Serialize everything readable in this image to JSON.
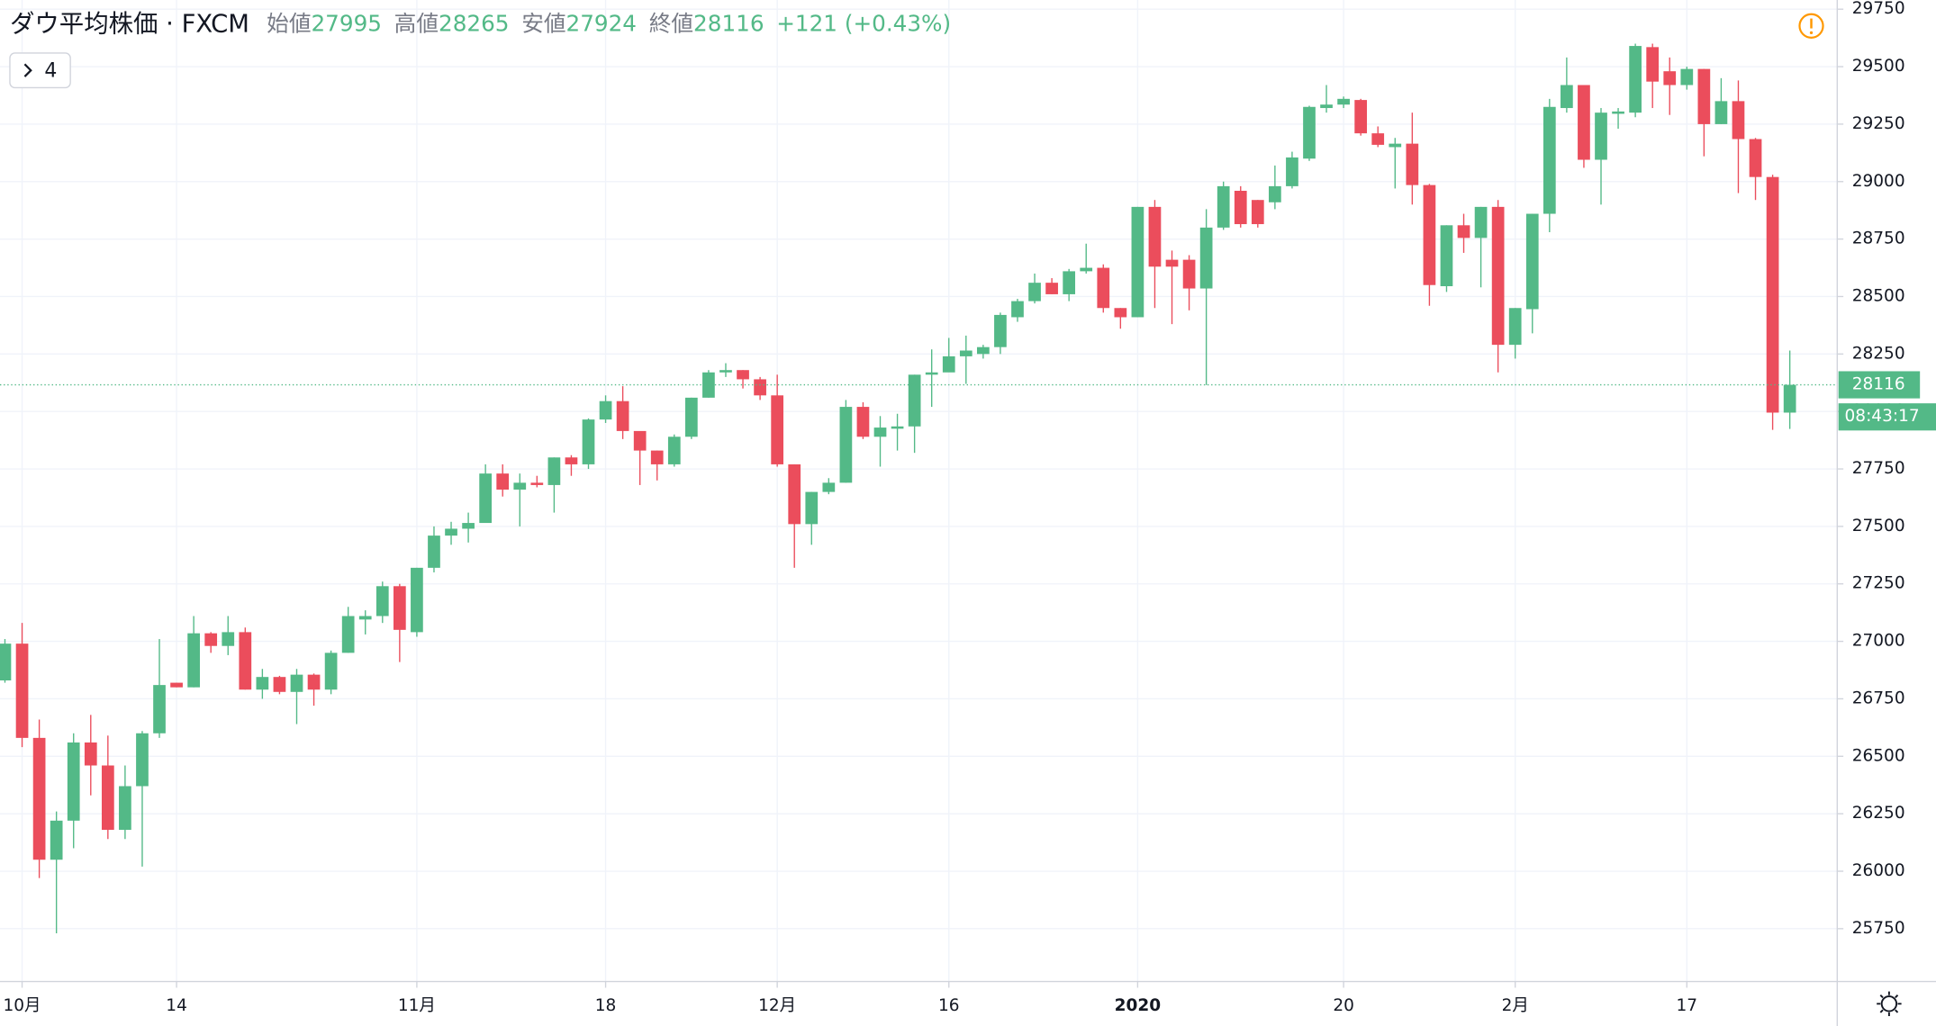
{
  "chart_data": {
    "type": "candlestick",
    "title": "ダウ平均株価 · FXCM",
    "ohlc_labels": [
      "始値",
      "高値",
      "安値",
      "終値"
    ],
    "change_label": "+121 (+0.43%)",
    "countdown": "08:43:17",
    "indicator_count": "4",
    "up_color": "#53b987",
    "down_color": "#eb4d5c",
    "ylim": [
      25520,
      29790
    ],
    "yticks": [
      25750,
      26000,
      26250,
      26500,
      26750,
      27000,
      27250,
      27500,
      27750,
      28000,
      28250,
      28500,
      28750,
      29000,
      29250,
      29500,
      29750
    ],
    "grid": true,
    "xlabels": [
      {
        "index": 1,
        "label": "10月"
      },
      {
        "index": 10,
        "label": "14"
      },
      {
        "index": 24,
        "label": "11月"
      },
      {
        "index": 35,
        "label": "18"
      },
      {
        "index": 45,
        "label": "12月"
      },
      {
        "index": 55,
        "label": "16"
      },
      {
        "index": 66,
        "label": "2020"
      },
      {
        "index": 78,
        "label": "20"
      },
      {
        "index": 88,
        "label": "2月"
      },
      {
        "index": 98,
        "label": "17"
      }
    ],
    "open": [
      26830,
      26990,
      26580,
      26050,
      26220,
      26560,
      26460,
      26180,
      26370,
      26600,
      26820,
      26800,
      27035,
      26980,
      27040,
      26790,
      26845,
      26780,
      26855,
      26790,
      26950,
      27095,
      27110,
      27240,
      27040,
      27320,
      27460,
      27490,
      27515,
      27730,
      27660,
      27690,
      27680,
      27800,
      27770,
      27965,
      28045,
      27915,
      27830,
      27770,
      27890,
      28060,
      28170,
      28180,
      28140,
      28070,
      27770,
      27510,
      27650,
      27690,
      28020,
      27890,
      27925,
      27935,
      28160,
      28170,
      28240,
      28250,
      28280,
      28410,
      28480,
      28560,
      28510,
      28610,
      28625,
      28450,
      28410,
      28890,
      28660,
      28660,
      28535,
      28800,
      28960,
      28920,
      28910,
      28980,
      29100,
      29320,
      29335,
      29355,
      29210,
      29150,
      29165,
      28985,
      28545,
      28810,
      28755,
      28890,
      28290,
      28445,
      28860,
      29320,
      29420,
      29095,
      29295,
      29300,
      29585,
      29480,
      29420,
      29490,
      29250,
      29350,
      29185,
      29020,
      27995
    ],
    "high": [
      27010,
      27080,
      26660,
      26260,
      26600,
      26680,
      26590,
      26460,
      26610,
      27010,
      26820,
      27110,
      27040,
      27110,
      27060,
      26880,
      26850,
      26880,
      26860,
      26960,
      27150,
      27135,
      27260,
      27250,
      27320,
      27500,
      27520,
      27560,
      27770,
      27770,
      27730,
      27720,
      27800,
      27810,
      27970,
      28070,
      28110,
      27900,
      27830,
      27900,
      28060,
      28180,
      28210,
      28180,
      28150,
      28160,
      27770,
      27650,
      27710,
      28050,
      28040,
      27980,
      27990,
      28160,
      28270,
      28320,
      28330,
      28290,
      28430,
      28490,
      28600,
      28580,
      28620,
      28730,
      28640,
      28450,
      28890,
      28920,
      28700,
      28680,
      28880,
      29000,
      28980,
      28920,
      29070,
      29130,
      29330,
      29420,
      29370,
      29360,
      29240,
      29190,
      29300,
      28990,
      28810,
      28860,
      28890,
      28920,
      28450,
      28860,
      29360,
      29540,
      29420,
      29320,
      29320,
      29600,
      29600,
      29540,
      29500,
      29490,
      29450,
      29440,
      29190,
      29030,
      28265
    ],
    "low": [
      26820,
      26540,
      25970,
      25730,
      26100,
      26330,
      26140,
      26140,
      26020,
      26580,
      26800,
      26800,
      26950,
      26940,
      26790,
      26750,
      26770,
      26640,
      26720,
      26770,
      26950,
      27030,
      27080,
      26910,
      27020,
      27300,
      27420,
      27430,
      27520,
      27630,
      27500,
      27670,
      27560,
      27720,
      27750,
      27950,
      27880,
      27680,
      27700,
      27760,
      27880,
      28060,
      28150,
      28100,
      28050,
      27760,
      27320,
      27420,
      27640,
      27690,
      27880,
      27760,
      27830,
      27820,
      28020,
      28180,
      28120,
      28230,
      28250,
      28390,
      28470,
      28510,
      28480,
      28600,
      28430,
      28360,
      28410,
      28450,
      28380,
      28440,
      28115,
      28790,
      28800,
      28800,
      28880,
      28970,
      29090,
      29300,
      29320,
      29200,
      29150,
      28970,
      28900,
      28460,
      28520,
      28690,
      28540,
      28170,
      28230,
      28340,
      28780,
      29300,
      29060,
      28900,
      29230,
      29280,
      29320,
      29290,
      29400,
      29110,
      29250,
      28950,
      28920,
      27920,
      27924
    ],
    "close": [
      26990,
      26580,
      26050,
      26220,
      26560,
      26460,
      26180,
      26370,
      26600,
      26810,
      26800,
      27035,
      26980,
      27040,
      26790,
      26845,
      26780,
      26855,
      26790,
      26950,
      27110,
      27110,
      27240,
      27050,
      27320,
      27460,
      27490,
      27515,
      27730,
      27660,
      27690,
      27680,
      27800,
      27770,
      27965,
      28045,
      27915,
      27830,
      27770,
      27890,
      28060,
      28170,
      28180,
      28140,
      28070,
      27770,
      27510,
      27650,
      27690,
      28020,
      27890,
      27930,
      27935,
      28160,
      28170,
      28240,
      28265,
      28280,
      28420,
      28480,
      28560,
      28510,
      28610,
      28625,
      28450,
      28410,
      28890,
      28630,
      28630,
      28535,
      28800,
      28980,
      28815,
      28815,
      28980,
      29105,
      29325,
      29335,
      29360,
      29210,
      29160,
      29165,
      28985,
      28550,
      28810,
      28755,
      28890,
      28290,
      28450,
      28860,
      29325,
      29420,
      29095,
      29300,
      29305,
      29590,
      29435,
      29420,
      29490,
      29250,
      29350,
      29185,
      29020,
      27995,
      28116
    ]
  }
}
